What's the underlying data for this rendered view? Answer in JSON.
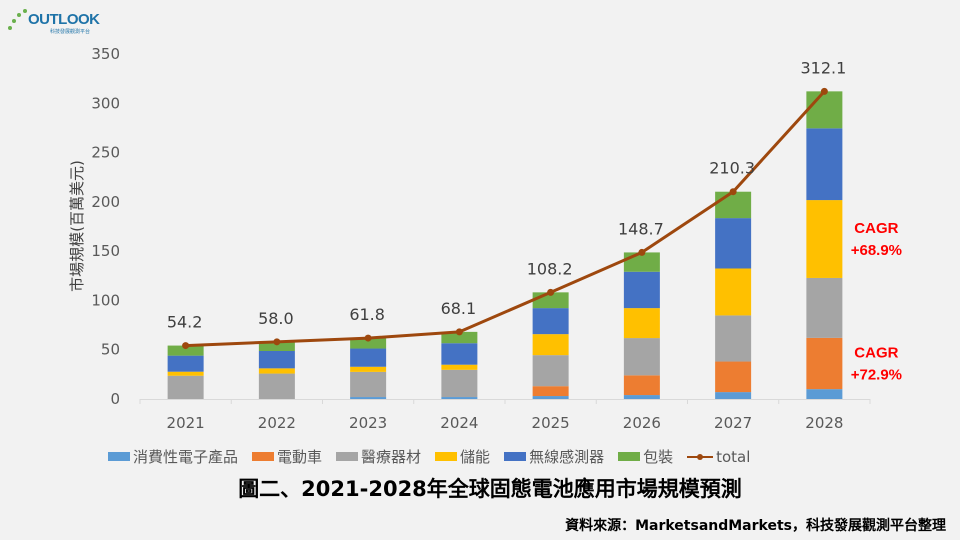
{
  "logo": {
    "text": "OUTLOOK",
    "subtext": "科技發展觀測平台"
  },
  "chart_data": {
    "type": "bar",
    "stacked": true,
    "title": "圖二、2021-2028年全球固態電池應用市場規模預測",
    "xlabel": "",
    "ylabel": "市場規模(百萬美元)",
    "ylim": [
      0,
      350
    ],
    "yticks": [
      0,
      50,
      100,
      150,
      200,
      250,
      300,
      350
    ],
    "grid": false,
    "legend_position": "bottom",
    "categories": [
      "2021",
      "2022",
      "2023",
      "2024",
      "2025",
      "2026",
      "2027",
      "2028"
    ],
    "series": [
      {
        "name": "消費性電子產品",
        "color": "#5b9bd5",
        "values": [
          0,
          0,
          2,
          2,
          3,
          4,
          7,
          10
        ]
      },
      {
        "name": "電動車",
        "color": "#ed7d31",
        "values": [
          0,
          0,
          0,
          0,
          10,
          20,
          31,
          52
        ]
      },
      {
        "name": "醫療器材",
        "color": "#a5a5a5",
        "values": [
          23.6,
          25.8,
          25.5,
          27.6,
          31.5,
          37.8,
          46.8,
          60.8
        ]
      },
      {
        "name": "儲能",
        "color": "#ffc000",
        "values": [
          4.1,
          5.3,
          5.2,
          5.2,
          21.3,
          30.4,
          47.6,
          79.0
        ]
      },
      {
        "name": "無線感測器",
        "color": "#4472c4",
        "values": [
          16.3,
          17.6,
          18.5,
          21.8,
          26.4,
          36.9,
          51.1,
          72.8
        ]
      },
      {
        "name": "包裝",
        "color": "#70ad47",
        "values": [
          10.2,
          9.3,
          10.6,
          11.5,
          16.0,
          19.6,
          26.8,
          37.5
        ]
      }
    ],
    "line_series": {
      "name": "total",
      "color": "#9e480e",
      "values": [
        54.2,
        58.0,
        61.8,
        68.1,
        108.2,
        148.7,
        210.3,
        312.1
      ]
    },
    "data_labels": [
      "54.2",
      "58.0",
      "61.8",
      "68.1",
      "108.2",
      "148.7",
      "210.3",
      "312.1"
    ],
    "annotations": [
      {
        "text_line1": "CAGR",
        "text_line2": "+68.9%",
        "series": "儲能",
        "color": "#ff0000"
      },
      {
        "text_line1": "CAGR",
        "text_line2": "+72.9%",
        "series": "電動車",
        "color": "#ff0000"
      }
    ]
  },
  "source": "資料來源：MarketsandMarkets，科技發展觀測平台整理"
}
